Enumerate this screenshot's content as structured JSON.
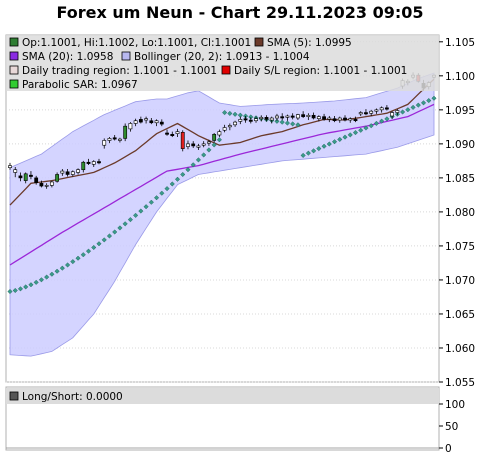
{
  "chart_data": {
    "type": "candlestick",
    "title": "Forex um Neun - Chart 29.11.2023 09:05",
    "ylim": [
      1.055,
      1.106
    ],
    "yticks": [
      "1.105",
      "1.100",
      "1.095",
      "1.090",
      "1.085",
      "1.080",
      "1.075",
      "1.070",
      "1.065",
      "1.060",
      "1.055"
    ],
    "legend": [
      {
        "label": "Op:1.1001, Hi:1.1002, Lo:1.1001, Cl:1.1001",
        "color": "#2e7d32"
      },
      {
        "label": "SMA (5): 1.0995",
        "color": "#6b3a2a"
      },
      {
        "label": "SMA (20): 1.0958",
        "color": "#8a2be2"
      },
      {
        "label": "Bollinger (20, 2): 1.0913 - 1.1004",
        "color": "#b8b8f0"
      },
      {
        "label": "Daily trading region: 1.1001 - 1.1001",
        "color": "#e8d8d8"
      },
      {
        "label": "Daily S/L region: 1.1001 - 1.1001",
        "color": "#e00000"
      },
      {
        "label": "Parabolic SAR: 1.0967",
        "color": "#33cc33"
      }
    ],
    "candles": [
      {
        "o": 1.0865,
        "h": 1.0872,
        "l": 1.0862,
        "c": 1.0868
      },
      {
        "o": 1.0858,
        "h": 1.0866,
        "l": 1.0851,
        "c": 1.0862
      },
      {
        "o": 1.0853,
        "h": 1.0858,
        "l": 1.0845,
        "c": 1.085
      },
      {
        "o": 1.0846,
        "h": 1.0858,
        "l": 1.0842,
        "c": 1.0856
      },
      {
        "o": 1.0854,
        "h": 1.086,
        "l": 1.0848,
        "c": 1.0852
      },
      {
        "o": 1.085,
        "h": 1.0853,
        "l": 1.084,
        "c": 1.0843
      },
      {
        "o": 1.0842,
        "h": 1.0846,
        "l": 1.0836,
        "c": 1.0838
      },
      {
        "o": 1.0838,
        "h": 1.0842,
        "l": 1.0834,
        "c": 1.0839
      },
      {
        "o": 1.0839,
        "h": 1.0846,
        "l": 1.0836,
        "c": 1.0844
      },
      {
        "o": 1.0845,
        "h": 1.0858,
        "l": 1.0843,
        "c": 1.0855
      },
      {
        "o": 1.0857,
        "h": 1.0863,
        "l": 1.0853,
        "c": 1.086
      },
      {
        "o": 1.0859,
        "h": 1.0863,
        "l": 1.0852,
        "c": 1.0855
      },
      {
        "o": 1.0855,
        "h": 1.0861,
        "l": 1.0852,
        "c": 1.0859
      },
      {
        "o": 1.0858,
        "h": 1.0864,
        "l": 1.0855,
        "c": 1.0862
      },
      {
        "o": 1.0862,
        "h": 1.0875,
        "l": 1.0858,
        "c": 1.0873
      },
      {
        "o": 1.0873,
        "h": 1.0878,
        "l": 1.0869,
        "c": 1.0871
      },
      {
        "o": 1.087,
        "h": 1.0876,
        "l": 1.0866,
        "c": 1.0874
      },
      {
        "o": 1.0874,
        "h": 1.0878,
        "l": 1.087,
        "c": 1.0872
      },
      {
        "o": 1.0898,
        "h": 1.0908,
        "l": 1.0893,
        "c": 1.0905
      },
      {
        "o": 1.0905,
        "h": 1.091,
        "l": 1.0901,
        "c": 1.0908
      },
      {
        "o": 1.0909,
        "h": 1.0913,
        "l": 1.0905,
        "c": 1.0907
      },
      {
        "o": 1.0905,
        "h": 1.0909,
        "l": 1.0902,
        "c": 1.0907
      },
      {
        "o": 1.0908,
        "h": 1.093,
        "l": 1.0904,
        "c": 1.0926
      },
      {
        "o": 1.0922,
        "h": 1.0932,
        "l": 1.0918,
        "c": 1.093
      },
      {
        "o": 1.093,
        "h": 1.0937,
        "l": 1.0926,
        "c": 1.0934
      },
      {
        "o": 1.0936,
        "h": 1.094,
        "l": 1.093,
        "c": 1.0932
      },
      {
        "o": 1.0935,
        "h": 1.094,
        "l": 1.093,
        "c": 1.0937
      },
      {
        "o": 1.0934,
        "h": 1.0938,
        "l": 1.0929,
        "c": 1.0931
      },
      {
        "o": 1.0931,
        "h": 1.0936,
        "l": 1.0926,
        "c": 1.0934
      },
      {
        "o": 1.0932,
        "h": 1.0936,
        "l": 1.0926,
        "c": 1.0929
      },
      {
        "o": 1.0916,
        "h": 1.0921,
        "l": 1.0912,
        "c": 1.0914
      },
      {
        "o": 1.0914,
        "h": 1.0918,
        "l": 1.091,
        "c": 1.0912
      },
      {
        "o": 1.0915,
        "h": 1.0922,
        "l": 1.091,
        "c": 1.0918
      },
      {
        "o": 1.0917,
        "h": 1.092,
        "l": 1.0889,
        "c": 1.0893
      },
      {
        "o": 1.0896,
        "h": 1.0905,
        "l": 1.0892,
        "c": 1.09
      },
      {
        "o": 1.09,
        "h": 1.0904,
        "l": 1.0894,
        "c": 1.0897
      },
      {
        "o": 1.0895,
        "h": 1.09,
        "l": 1.0891,
        "c": 1.0897
      },
      {
        "o": 1.0898,
        "h": 1.0904,
        "l": 1.0895,
        "c": 1.09
      },
      {
        "o": 1.0901,
        "h": 1.0906,
        "l": 1.0897,
        "c": 1.0903
      },
      {
        "o": 1.0905,
        "h": 1.0916,
        "l": 1.0902,
        "c": 1.0914
      },
      {
        "o": 1.0913,
        "h": 1.0921,
        "l": 1.091,
        "c": 1.0918
      },
      {
        "o": 1.092,
        "h": 1.0928,
        "l": 1.0917,
        "c": 1.0924
      },
      {
        "o": 1.0925,
        "h": 1.093,
        "l": 1.092,
        "c": 1.0927
      },
      {
        "o": 1.0928,
        "h": 1.0934,
        "l": 1.0925,
        "c": 1.0932
      },
      {
        "o": 1.0933,
        "h": 1.094,
        "l": 1.0929,
        "c": 1.0936
      },
      {
        "o": 1.0937,
        "h": 1.0941,
        "l": 1.0931,
        "c": 1.0935
      },
      {
        "o": 1.0935,
        "h": 1.0939,
        "l": 1.093,
        "c": 1.0933
      },
      {
        "o": 1.0934,
        "h": 1.094,
        "l": 1.0931,
        "c": 1.0937
      },
      {
        "o": 1.0937,
        "h": 1.0942,
        "l": 1.0933,
        "c": 1.0939
      },
      {
        "o": 1.0939,
        "h": 1.0942,
        "l": 1.0933,
        "c": 1.0936
      },
      {
        "o": 1.0935,
        "h": 1.094,
        "l": 1.093,
        "c": 1.0938
      },
      {
        "o": 1.0938,
        "h": 1.0944,
        "l": 1.0934,
        "c": 1.0941
      },
      {
        "o": 1.094,
        "h": 1.0945,
        "l": 1.0935,
        "c": 1.0938
      },
      {
        "o": 1.0939,
        "h": 1.0943,
        "l": 1.0934,
        "c": 1.0941
      },
      {
        "o": 1.0941,
        "h": 1.0945,
        "l": 1.0936,
        "c": 1.0939
      },
      {
        "o": 1.0938,
        "h": 1.0944,
        "l": 1.0935,
        "c": 1.0943
      },
      {
        "o": 1.0943,
        "h": 1.0948,
        "l": 1.0938,
        "c": 1.094
      },
      {
        "o": 1.094,
        "h": 1.0945,
        "l": 1.0935,
        "c": 1.0942
      },
      {
        "o": 1.0942,
        "h": 1.0946,
        "l": 1.0936,
        "c": 1.0938
      },
      {
        "o": 1.0937,
        "h": 1.0942,
        "l": 1.0933,
        "c": 1.094
      },
      {
        "o": 1.094,
        "h": 1.0944,
        "l": 1.0934,
        "c": 1.0936
      },
      {
        "o": 1.0936,
        "h": 1.0941,
        "l": 1.0932,
        "c": 1.0938
      },
      {
        "o": 1.0937,
        "h": 1.0941,
        "l": 1.0932,
        "c": 1.0934
      },
      {
        "o": 1.0935,
        "h": 1.094,
        "l": 1.0931,
        "c": 1.0938
      },
      {
        "o": 1.0938,
        "h": 1.0942,
        "l": 1.0933,
        "c": 1.0935
      },
      {
        "o": 1.0935,
        "h": 1.0939,
        "l": 1.0931,
        "c": 1.0937
      },
      {
        "o": 1.0936,
        "h": 1.094,
        "l": 1.0932,
        "c": 1.0934
      },
      {
        "o": 1.0944,
        "h": 1.0948,
        "l": 1.0941,
        "c": 1.0946
      },
      {
        "o": 1.0946,
        "h": 1.0951,
        "l": 1.0942,
        "c": 1.0944
      },
      {
        "o": 1.0945,
        "h": 1.095,
        "l": 1.0941,
        "c": 1.0948
      },
      {
        "o": 1.0948,
        "h": 1.0952,
        "l": 1.0944,
        "c": 1.095
      },
      {
        "o": 1.095,
        "h": 1.0955,
        "l": 1.0946,
        "c": 1.0953
      },
      {
        "o": 1.0953,
        "h": 1.0957,
        "l": 1.0949,
        "c": 1.0951
      },
      {
        "o": 1.0941,
        "h": 1.0948,
        "l": 1.0937,
        "c": 1.0946
      },
      {
        "o": 1.0946,
        "h": 1.0951,
        "l": 1.0942,
        "c": 1.0949
      },
      {
        "o": 1.0985,
        "h": 1.0996,
        "l": 1.0981,
        "c": 1.0993
      },
      {
        "o": 1.099,
        "h": 1.0995,
        "l": 1.0986,
        "c": 1.0992
      },
      {
        "o": 1.0998,
        "h": 1.1005,
        "l": 1.0995,
        "c": 1.1001
      },
      {
        "o": 1.1001,
        "h": 1.1004,
        "l": 1.099,
        "c": 1.0992
      },
      {
        "o": 1.0989,
        "h": 1.0994,
        "l": 1.0978,
        "c": 1.0982
      },
      {
        "o": 1.0984,
        "h": 1.0992,
        "l": 1.098,
        "c": 1.099
      },
      {
        "o": 1.0998,
        "h": 1.1002,
        "l": 1.0996,
        "c": 1.1001
      }
    ],
    "sma5": [
      [
        0,
        1.081
      ],
      [
        4,
        1.0842
      ],
      [
        8,
        1.0846
      ],
      [
        12,
        1.0852
      ],
      [
        16,
        1.0858
      ],
      [
        20,
        1.0872
      ],
      [
        24,
        1.089
      ],
      [
        28,
        1.0915
      ],
      [
        32,
        1.093
      ],
      [
        36,
        1.0912
      ],
      [
        40,
        1.0898
      ],
      [
        44,
        1.0902
      ],
      [
        48,
        1.0912
      ],
      [
        52,
        1.0918
      ],
      [
        56,
        1.0928
      ],
      [
        60,
        1.0936
      ],
      [
        64,
        1.0935
      ],
      [
        68,
        1.094
      ],
      [
        72,
        1.0945
      ],
      [
        76,
        1.0958
      ],
      [
        80,
        1.0988
      ],
      [
        81,
        1.0995
      ]
    ],
    "sma20": [
      [
        0,
        1.0722
      ],
      [
        10,
        1.077
      ],
      [
        20,
        1.0815
      ],
      [
        30,
        1.086
      ],
      [
        36,
        1.0868
      ],
      [
        44,
        1.0885
      ],
      [
        52,
        1.09
      ],
      [
        60,
        1.0915
      ],
      [
        68,
        1.0926
      ],
      [
        76,
        1.094
      ],
      [
        81,
        1.0958
      ]
    ],
    "boll_upper": [
      [
        0,
        1.0865
      ],
      [
        6,
        1.0885
      ],
      [
        12,
        1.0918
      ],
      [
        18,
        1.0943
      ],
      [
        24,
        1.0962
      ],
      [
        28,
        1.0966
      ],
      [
        30,
        1.0966
      ],
      [
        34,
        1.0975
      ],
      [
        36,
        1.0978
      ],
      [
        40,
        1.096
      ],
      [
        44,
        1.0955
      ],
      [
        50,
        1.0958
      ],
      [
        56,
        1.096
      ],
      [
        62,
        1.0963
      ],
      [
        68,
        1.0968
      ],
      [
        74,
        1.0982
      ],
      [
        78,
        1.0996
      ],
      [
        81,
        1.1004
      ]
    ],
    "boll_lower": [
      [
        0,
        1.059
      ],
      [
        4,
        1.0588
      ],
      [
        8,
        1.0595
      ],
      [
        12,
        1.0615
      ],
      [
        16,
        1.065
      ],
      [
        20,
        1.0698
      ],
      [
        24,
        1.0752
      ],
      [
        28,
        1.08
      ],
      [
        32,
        1.084
      ],
      [
        36,
        1.0855
      ],
      [
        44,
        1.0865
      ],
      [
        52,
        1.0875
      ],
      [
        60,
        1.088
      ],
      [
        68,
        1.0885
      ],
      [
        74,
        1.0895
      ],
      [
        81,
        1.0913
      ]
    ],
    "sar": {
      "up1": {
        "start": 0,
        "end": 40,
        "from": 1.0683,
        "to": 1.0906
      },
      "down": {
        "start": 41,
        "end": 55,
        "from": 1.0946,
        "to": 1.0928
      },
      "up2": {
        "start": 56,
        "end": 81,
        "from": 1.0883,
        "to": 1.0967
      }
    },
    "lower_panel": {
      "label": "Long/Short: 0.0000",
      "yticks": [
        "100",
        "50",
        "0"
      ]
    }
  }
}
